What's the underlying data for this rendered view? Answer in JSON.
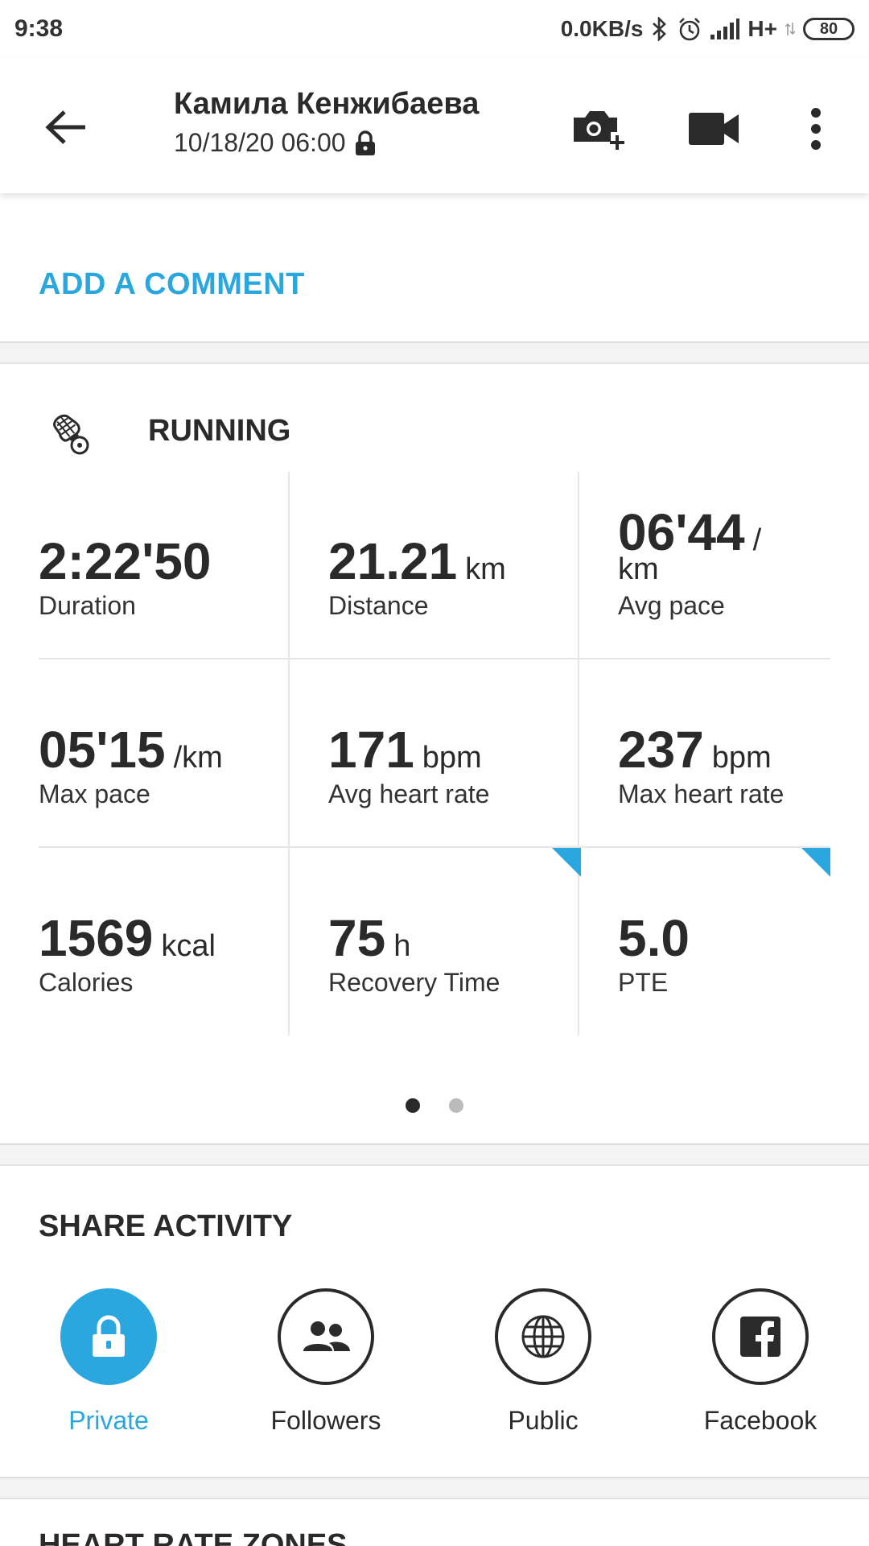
{
  "status_bar": {
    "time": "9:38",
    "net_speed": "0.0KB/s",
    "network": "H+",
    "battery": "80"
  },
  "header": {
    "user_name": "Камила Кенжибаева",
    "datetime": "10/18/20 06:00",
    "icons": [
      "back-arrow-icon",
      "add-photo-icon",
      "video-camera-icon",
      "more-vert-icon",
      "lock-icon"
    ]
  },
  "comment": {
    "label": "ADD A COMMENT"
  },
  "activity": {
    "type": "RUNNING",
    "stats": [
      {
        "value": "2:22'50",
        "unit": "",
        "label": "Duration"
      },
      {
        "value": "21.21",
        "unit": "km",
        "label": "Distance"
      },
      {
        "value": "06'44",
        "unit": "/",
        "unit2": "km",
        "label": "Avg pace"
      },
      {
        "value": "05'15",
        "unit": "/km",
        "label": "Max pace"
      },
      {
        "value": "171",
        "unit": "bpm",
        "label": "Avg heart rate"
      },
      {
        "value": "237",
        "unit": "bpm",
        "label": "Max heart rate"
      },
      {
        "value": "1569",
        "unit": "kcal",
        "label": "Calories"
      },
      {
        "value": "75",
        "unit": "h",
        "label": "Recovery Time"
      },
      {
        "value": "5.0",
        "unit": "",
        "label": "PTE"
      }
    ],
    "page_indicator": {
      "current": 1,
      "total": 2
    }
  },
  "share": {
    "title": "SHARE ACTIVITY",
    "options": [
      {
        "label": "Private",
        "icon": "lock-icon",
        "selected": true
      },
      {
        "label": "Followers",
        "icon": "people-icon",
        "selected": false
      },
      {
        "label": "Public",
        "icon": "globe-icon",
        "selected": false
      },
      {
        "label": "Facebook",
        "icon": "facebook-icon",
        "selected": false
      }
    ]
  },
  "next_section": {
    "title": "HEART RATE ZONES"
  },
  "colors": {
    "accent": "#29a7de",
    "text": "#2a2a2a"
  }
}
